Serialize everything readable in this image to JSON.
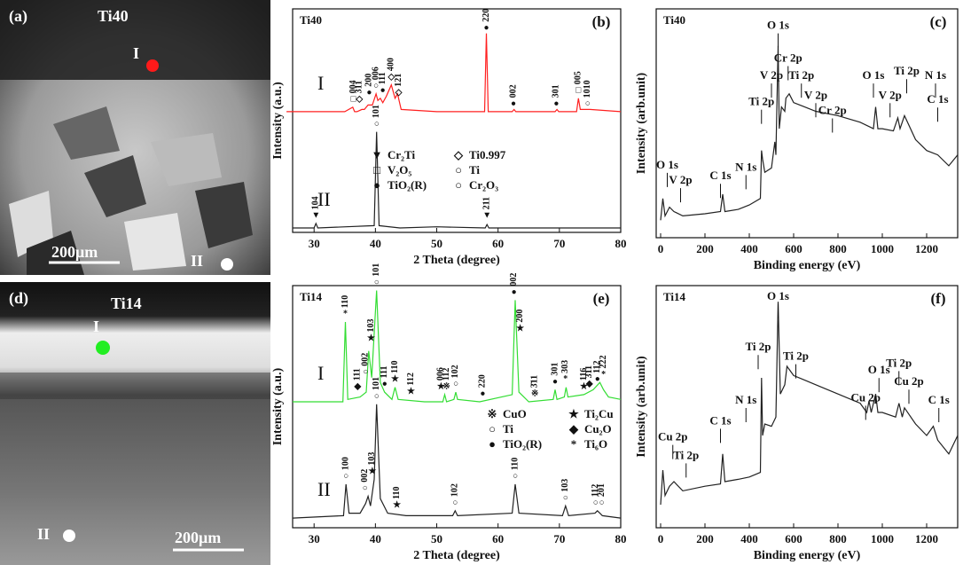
{
  "micrographs": [
    {
      "panel": "(a)",
      "sample": "Ti40",
      "points": [
        "I",
        "II"
      ],
      "scale": "200μm"
    },
    {
      "panel": "(d)",
      "sample": "Ti14",
      "points": [
        "I",
        "II"
      ],
      "scale": "200μm"
    }
  ],
  "chart_data": [
    {
      "type": "line",
      "panel": "(b)",
      "sample": "Ti40",
      "x_label": "2 Theta (degree)",
      "y_label": "Intensity (a.u.)",
      "xlim": [
        26.5,
        80
      ],
      "xticks": [
        30,
        40,
        50,
        60,
        70,
        80
      ],
      "ylim": [
        0,
        100
      ],
      "series": [
        {
          "name": "I",
          "color": "#ff2020",
          "x": [
            25.5,
            35,
            36.3,
            36.6,
            37,
            37.8,
            38.2,
            38.8,
            39.5,
            40.1,
            40.4,
            40.8,
            41.2,
            41.8,
            42.6,
            43.2,
            43.6,
            44.2,
            50,
            57.8,
            58.1,
            58.4,
            62.3,
            62.6,
            62.9,
            69.3,
            69.6,
            69.9,
            72.8,
            73.1,
            73.4,
            75,
            80
          ],
          "values": [
            54,
            54,
            56,
            54,
            54,
            55,
            55,
            57,
            57,
            62,
            59,
            60,
            58,
            61,
            66,
            60,
            62,
            55,
            54,
            54,
            89,
            54,
            54,
            55,
            54,
            54,
            55,
            54,
            54,
            60,
            55,
            55,
            54
          ]
        },
        {
          "name": "II",
          "color": "#222222",
          "x": [
            26.5,
            30,
            30.3,
            30.6,
            39.8,
            40.2,
            40.6,
            44,
            50,
            57.9,
            58.2,
            58.5,
            80
          ],
          "values": [
            2,
            2,
            4,
            2,
            3,
            45,
            3,
            2,
            2.5,
            2,
            3.5,
            2,
            2
          ]
        }
      ],
      "annotations": [
        {
          "text": "004",
          "marker": "□",
          "x": 36.4,
          "y": 57
        },
        {
          "text": "311",
          "marker": "◇",
          "x": 37.4,
          "y": 57
        },
        {
          "text": "200",
          "marker": "●",
          "x": 39.0,
          "y": 60
        },
        {
          "text": "006",
          "marker": "○",
          "x": 40.1,
          "y": 63
        },
        {
          "text": "111",
          "marker": "●",
          "x": 41.2,
          "y": 61
        },
        {
          "text": "400",
          "marker": "◇",
          "x": 42.6,
          "y": 67
        },
        {
          "text": "121",
          "marker": "◇",
          "x": 43.8,
          "y": 60
        },
        {
          "text": "220",
          "marker": "●",
          "x": 58.1,
          "y": 89
        },
        {
          "text": "002",
          "marker": "●",
          "x": 62.5,
          "y": 55
        },
        {
          "text": "301",
          "marker": "●",
          "x": 69.5,
          "y": 55
        },
        {
          "text": "005",
          "marker": "□",
          "x": 73.1,
          "y": 61
        },
        {
          "text": "1010",
          "marker": "○",
          "x": 74.6,
          "y": 55
        },
        {
          "text": "101",
          "marker": "○",
          "x": 40.2,
          "y": 46
        },
        {
          "text": "104",
          "marker": "▼",
          "x": 30.3,
          "y": 5
        },
        {
          "text": "211",
          "marker": "▼",
          "x": 58.2,
          "y": 5
        }
      ],
      "legend": [
        {
          "marker": "▼",
          "text": "Cr₂Ti"
        },
        {
          "marker": "◇",
          "text": "Ti0.997"
        },
        {
          "marker": "□",
          "text": "V₂O₅"
        },
        {
          "marker": "○",
          "text": "Ti"
        },
        {
          "marker": "●",
          "text": "TiO₂(R)"
        },
        {
          "marker": "○",
          "text": "Cr₂O₃"
        }
      ]
    },
    {
      "type": "line",
      "panel": "(c)",
      "sample": "Ti40",
      "x_label": "Binding energy (eV)",
      "y_label": "Intensity (arb.unit)",
      "xlim": [
        -20,
        1340
      ],
      "xticks": [
        0,
        200,
        400,
        600,
        800,
        1000,
        1200
      ],
      "ylim": [
        0,
        105
      ],
      "series": [
        {
          "color": "#222222",
          "x": [
            0,
            10,
            20,
            30,
            40,
            60,
            100,
            200,
            270,
            280,
            290,
            350,
            400,
            450,
            455,
            460,
            470,
            500,
            515,
            520,
            530,
            535,
            545,
            560,
            565,
            580,
            600,
            650,
            700,
            800,
            900,
            960,
            970,
            980,
            1000,
            1050,
            1070,
            1080,
            1100,
            1150,
            1200,
            1250,
            1300,
            1340
          ],
          "values": [
            8,
            18,
            10,
            12,
            14,
            12,
            10,
            11,
            12,
            20,
            12,
            13,
            15,
            18,
            40,
            36,
            30,
            32,
            44,
            38,
            88,
            50,
            60,
            58,
            64,
            66,
            62,
            60,
            58,
            56,
            53,
            50,
            60,
            50,
            50,
            49,
            55,
            50,
            56,
            45,
            40,
            38,
            33,
            38
          ]
        }
      ],
      "annotations": [
        {
          "text": "O 1s",
          "x": 530,
          "y": 97
        },
        {
          "text": "Cr 2p",
          "x": 575,
          "y": 82
        },
        {
          "text": "V 2p",
          "x": 500,
          "y": 74
        },
        {
          "text": "Ti 2p",
          "x": 635,
          "y": 74
        },
        {
          "text": "Ti 2p",
          "x": 455,
          "y": 62
        },
        {
          "text": "V 2p",
          "x": 700,
          "y": 65
        },
        {
          "text": "Cr 2p",
          "x": 775,
          "y": 58
        },
        {
          "text": "O 1s",
          "x": 960,
          "y": 74
        },
        {
          "text": "V 2p",
          "x": 1035,
          "y": 65
        },
        {
          "text": "Ti 2p",
          "x": 1110,
          "y": 76
        },
        {
          "text": "N 1s",
          "x": 1240,
          "y": 74
        },
        {
          "text": "C 1s",
          "x": 1250,
          "y": 63
        },
        {
          "text": "N 1s",
          "x": 385,
          "y": 32
        },
        {
          "text": "C 1s",
          "x": 270,
          "y": 28
        },
        {
          "text": "O 1s",
          "x": 30,
          "y": 33
        },
        {
          "text": "V 2p",
          "x": 90,
          "y": 26
        }
      ]
    },
    {
      "type": "line",
      "panel": "(e)",
      "sample": "Ti14",
      "x_label": "2 Theta (degree)",
      "y_label": "Intensity (a.u.)",
      "xlim": [
        26.5,
        80
      ],
      "xticks": [
        30,
        40,
        50,
        60,
        70,
        80
      ],
      "ylim": [
        0,
        100
      ],
      "series": [
        {
          "name": "I",
          "color": "#33dd33",
          "x": [
            26.5,
            34.7,
            35.1,
            35.5,
            37.5,
            38.5,
            38.9,
            39.4,
            40.2,
            40.8,
            41.5,
            42.7,
            43.2,
            43.7,
            48,
            51,
            51.3,
            51.6,
            52.8,
            53.1,
            53.4,
            57,
            62.3,
            62.8,
            63.4,
            65,
            69,
            69.3,
            69.6,
            70.8,
            71.1,
            71.4,
            74,
            75.5,
            76.6,
            77.2,
            78,
            80
          ],
          "values": [
            52,
            52,
            85,
            53,
            54,
            56,
            73,
            62,
            98,
            60,
            56,
            53,
            58,
            53,
            52,
            52,
            55,
            52,
            53,
            56,
            53,
            52,
            55,
            94,
            56,
            52,
            53,
            57,
            53,
            54,
            58,
            54,
            55,
            57,
            60,
            57,
            54,
            53
          ]
        },
        {
          "name": "II",
          "color": "#222222",
          "x": [
            26.5,
            34.8,
            35.2,
            35.7,
            37.5,
            38.4,
            38.8,
            39.2,
            39.8,
            40.2,
            40.8,
            42,
            45,
            52.6,
            53,
            53.4,
            62.3,
            62.8,
            63.4,
            70.5,
            71,
            71.5,
            75.8,
            76.2,
            76.6,
            77,
            80
          ],
          "values": [
            4,
            5,
            18,
            6,
            6,
            10,
            13,
            9,
            20,
            51,
            12,
            6,
            5,
            5,
            7,
            5,
            6,
            18,
            6,
            5,
            9,
            5,
            6,
            7,
            6,
            5,
            4
          ]
        }
      ],
      "annotations": [
        {
          "text": "110",
          "marker": "*",
          "x": 35.1,
          "y": 86
        },
        {
          "text": "111",
          "marker": "◆",
          "x": 37.1,
          "y": 56
        },
        {
          "text": "002",
          "marker": "○",
          "x": 38.4,
          "y": 62
        },
        {
          "text": "103",
          "marker": "★",
          "x": 39.3,
          "y": 76
        },
        {
          "text": "101",
          "marker": "○",
          "x": 40.2,
          "y": 99
        },
        {
          "text": "111",
          "marker": "●",
          "x": 41.5,
          "y": 57
        },
        {
          "text": "110",
          "marker": "★",
          "x": 43.2,
          "y": 59
        },
        {
          "text": "112",
          "marker": "★",
          "x": 45.8,
          "y": 54
        },
        {
          "text": "006",
          "marker": "★",
          "x": 50.7,
          "y": 56
        },
        {
          "text": "112",
          "marker": "※",
          "x": 51.6,
          "y": 56
        },
        {
          "text": "102",
          "marker": "○",
          "x": 53.1,
          "y": 57
        },
        {
          "text": "220",
          "marker": "●",
          "x": 57.5,
          "y": 53
        },
        {
          "text": "002",
          "marker": "●",
          "x": 62.6,
          "y": 95
        },
        {
          "text": "200",
          "marker": "★",
          "x": 63.6,
          "y": 80
        },
        {
          "text": "3̄11",
          "marker": "※",
          "x": 66,
          "y": 53
        },
        {
          "text": "301",
          "marker": "●",
          "x": 69.3,
          "y": 58
        },
        {
          "text": "303",
          "marker": "*",
          "x": 71,
          "y": 59
        },
        {
          "text": "116",
          "marker": "★",
          "x": 74,
          "y": 56
        },
        {
          "text": "3̄11",
          "marker": "◆",
          "x": 74.9,
          "y": 57
        },
        {
          "text": "112",
          "marker": "●",
          "x": 76.2,
          "y": 59
        },
        {
          "text": "2̄22",
          "marker": "*",
          "x": 77.2,
          "y": 61
        },
        {
          "text": "100",
          "marker": "○",
          "x": 35.2,
          "y": 19
        },
        {
          "text": "002",
          "marker": "○",
          "x": 38.3,
          "y": 14
        },
        {
          "text": "103",
          "marker": "★",
          "x": 39.5,
          "y": 21
        },
        {
          "text": "101",
          "marker": "○",
          "x": 40.2,
          "y": 52
        },
        {
          "text": "110",
          "marker": "★",
          "x": 43.5,
          "y": 7
        },
        {
          "text": "102",
          "marker": "○",
          "x": 53,
          "y": 8
        },
        {
          "text": "110",
          "marker": "○",
          "x": 62.8,
          "y": 19
        },
        {
          "text": "103",
          "marker": "○",
          "x": 71,
          "y": 10
        },
        {
          "text": "112",
          "marker": "○",
          "x": 75.9,
          "y": 8
        },
        {
          "text": "201",
          "marker": "○",
          "x": 76.9,
          "y": 8
        }
      ],
      "legend": [
        {
          "marker": "※",
          "text": "CuO"
        },
        {
          "marker": "★",
          "text": "Ti₂Cu"
        },
        {
          "marker": "○",
          "text": "Ti"
        },
        {
          "marker": "◆",
          "text": "Cu₂O"
        },
        {
          "marker": "●",
          "text": "TiO₂(R)"
        },
        {
          "marker": "*",
          "text": "Ti₆O"
        }
      ]
    },
    {
      "type": "line",
      "panel": "(f)",
      "sample": "Ti14",
      "x_label": "Binding energy (eV)",
      "y_label": "Intensity (arb.unit)",
      "xlim": [
        -20,
        1340
      ],
      "xticks": [
        0,
        200,
        400,
        600,
        800,
        1000,
        1200
      ],
      "ylim": [
        0,
        105
      ],
      "series": [
        {
          "color": "#222222",
          "x": [
            0,
            10,
            20,
            40,
            60,
            100,
            200,
            270,
            280,
            290,
            350,
            400,
            450,
            455,
            460,
            470,
            500,
            520,
            530,
            540,
            560,
            570,
            600,
            650,
            700,
            800,
            900,
            930,
            940,
            950,
            970,
            980,
            1000,
            1060,
            1075,
            1090,
            1100,
            1150,
            1200,
            1230,
            1250,
            1300,
            1340
          ],
          "values": [
            10,
            25,
            14,
            18,
            20,
            16,
            18,
            19,
            32,
            20,
            21,
            22,
            24,
            65,
            40,
            45,
            44,
            48,
            98,
            58,
            62,
            70,
            66,
            64,
            62,
            58,
            54,
            50,
            55,
            50,
            58,
            50,
            50,
            48,
            54,
            48,
            52,
            45,
            40,
            44,
            38,
            32,
            40
          ]
        }
      ],
      "annotations": [
        {
          "text": "O 1s",
          "x": 530,
          "y": 100
        },
        {
          "text": "Ti 2p",
          "x": 440,
          "y": 78
        },
        {
          "text": "Ti 2p",
          "x": 610,
          "y": 74
        },
        {
          "text": "N 1s",
          "x": 385,
          "y": 55
        },
        {
          "text": "C 1s",
          "x": 270,
          "y": 46
        },
        {
          "text": "Cu 2p",
          "x": 55,
          "y": 39
        },
        {
          "text": "Ti 2p",
          "x": 115,
          "y": 31
        },
        {
          "text": "O 1s",
          "x": 985,
          "y": 68
        },
        {
          "text": "Cu 2p",
          "x": 925,
          "y": 56
        },
        {
          "text": "Ti 2p",
          "x": 1075,
          "y": 71
        },
        {
          "text": "Cu 2p",
          "x": 1120,
          "y": 63
        },
        {
          "text": "C 1s",
          "x": 1255,
          "y": 55
        }
      ]
    }
  ]
}
